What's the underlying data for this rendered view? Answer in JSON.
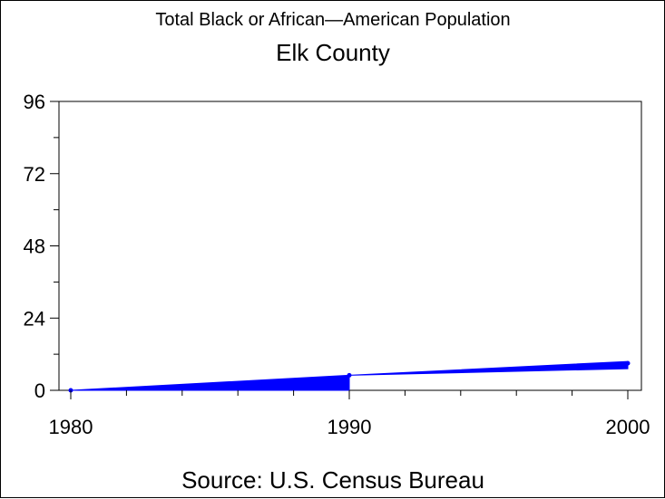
{
  "chart_data": {
    "type": "area",
    "title": "Total Black or African—American Population",
    "subtitle": "Elk County",
    "xlabel": "",
    "ylabel": "",
    "footer": "Source: U.S. Census Bureau",
    "x": [
      1980,
      1990,
      2000
    ],
    "series": [
      {
        "values": [
          0,
          5,
          9
        ],
        "color": "#0000ff"
      }
    ],
    "xlim": [
      1980,
      2000
    ],
    "ylim": [
      0,
      96
    ],
    "xticks": [
      "1980",
      "1990",
      "2000"
    ],
    "yticks": [
      "0",
      "24",
      "48",
      "72",
      "96"
    ],
    "grid": false
  }
}
